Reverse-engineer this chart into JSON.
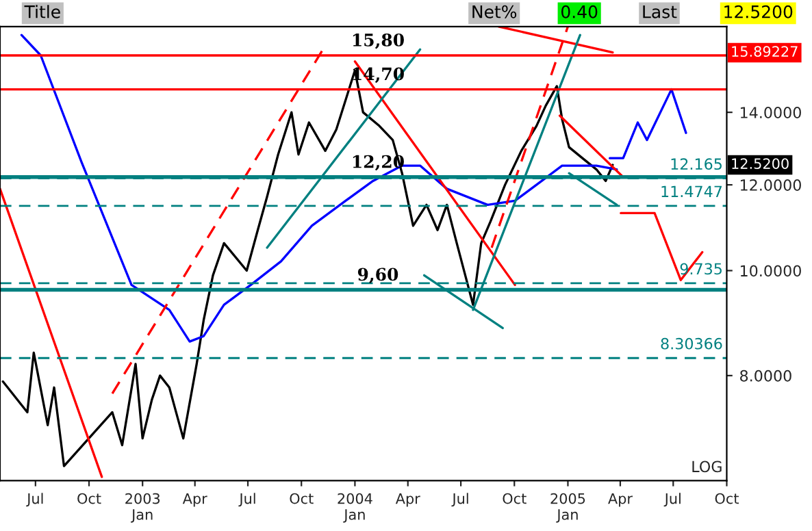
{
  "chart_data": {
    "type": "line",
    "log": true,
    "grid": false,
    "legend": false,
    "xlim": [
      "2002-05-01",
      "2005-10-01"
    ],
    "xticks": [
      {
        "value": "2002-07-01",
        "label": "Jul"
      },
      {
        "value": "2002-10-01",
        "label": "Oct"
      },
      {
        "value": "2003-01-01",
        "label": "2003\nJan"
      },
      {
        "value": "2003-04-01",
        "label": "Apr"
      },
      {
        "value": "2003-07-01",
        "label": "Jul"
      },
      {
        "value": "2003-10-01",
        "label": "Oct"
      },
      {
        "value": "2004-01-01",
        "label": "2004\nJan"
      },
      {
        "value": "2004-04-01",
        "label": "Apr"
      },
      {
        "value": "2004-07-01",
        "label": "Jul"
      },
      {
        "value": "2004-10-01",
        "label": "Oct"
      },
      {
        "value": "2005-01-01",
        "label": "2005\nJan"
      },
      {
        "value": "2005-04-01",
        "label": "Apr"
      },
      {
        "value": "2005-07-01",
        "label": "Jul"
      },
      {
        "value": "2005-10-01",
        "label": "Oct"
      }
    ],
    "ylim": [
      6.4,
      16.8
    ],
    "yticks": [
      {
        "value": 8,
        "label": "8.0000"
      },
      {
        "value": 10,
        "label": "10.0000"
      },
      {
        "value": 12,
        "label": "12.0000"
      },
      {
        "value": 14,
        "label": "14.0000"
      }
    ],
    "series": [
      {
        "color": "#000000",
        "x": [
          "2002-05-06",
          "2002-06-17",
          "2002-06-28",
          "2002-07-22",
          "2002-08-02",
          "2002-08-19",
          "2002-10-01",
          "2002-11-10",
          "2002-11-27",
          "2002-12-20",
          "2003-01-01",
          "2003-01-17",
          "2003-01-31",
          "2003-02-16",
          "2003-03-12",
          "2003-04-04",
          "2003-04-16",
          "2003-05-02",
          "2003-05-21",
          "2003-06-29",
          "2003-07-18",
          "2003-08-03",
          "2003-08-22",
          "2003-09-14",
          "2003-09-26",
          "2003-10-14",
          "2003-11-11",
          "2003-11-30",
          "2004-01-01",
          "2004-01-15",
          "2004-02-12",
          "2004-03-06",
          "2004-03-22",
          "2004-04-10",
          "2004-05-03",
          "2004-05-22",
          "2004-06-07",
          "2004-06-24",
          "2004-07-22",
          "2004-08-05",
          "2004-08-21",
          "2004-09-15",
          "2004-10-13",
          "2004-11-08",
          "2004-11-24",
          "2004-12-13",
          "2004-12-22",
          "2005-01-03",
          "2005-01-26",
          "2005-02-19",
          "2005-03-07",
          "2005-03-19"
        ],
        "values": [
          7.9,
          7.4,
          8.4,
          7.2,
          7.8,
          6.6,
          null,
          7.4,
          6.9,
          8.2,
          7.0,
          7.6,
          8.0,
          7.8,
          7.0,
          8.2,
          9.0,
          9.9,
          10.6,
          10.0,
          10.9,
          11.7,
          12.8,
          14.0,
          12.8,
          13.7,
          12.9,
          13.5,
          15.3,
          14.0,
          13.6,
          13.2,
          12.3,
          11.0,
          11.5,
          10.9,
          11.5,
          10.6,
          9.3,
          10.6,
          11.1,
          12.0,
          12.9,
          13.6,
          14.2,
          14.8,
          13.8,
          13.0,
          12.7,
          12.4,
          12.1,
          12.52
        ]
      },
      {
        "color": "#0000ff",
        "x": [
          "2002-06-07",
          "2002-07-10",
          "2002-09-18",
          "2002-12-13",
          "2003-02-16",
          "2003-03-23",
          "2003-04-16",
          "2003-05-21",
          "2003-07-06",
          "2003-08-27",
          "2003-10-19",
          "2003-12-16",
          "2004-02-01",
          "2004-03-22",
          "2004-04-22",
          "2004-06-07",
          "2004-08-16",
          "2004-10-02",
          "2004-11-17",
          "2004-12-22",
          "2005-02-19",
          "2005-03-26"
        ],
        "values": [
          16.5,
          15.8,
          12.6,
          9.7,
          9.2,
          8.6,
          8.7,
          9.3,
          9.7,
          10.2,
          11.0,
          11.6,
          12.1,
          12.5,
          12.5,
          11.9,
          11.5,
          11.6,
          12.1,
          12.5,
          12.5,
          12.4
        ]
      },
      {
        "color": "#ff0000",
        "x": [
          "2002-05-01",
          "2002-10-23"
        ],
        "values": [
          11.9,
          6.45
        ]
      },
      {
        "color": "#ff0000",
        "x": [
          "2004-01-01",
          "2004-10-02"
        ],
        "values": [
          15.6,
          9.7
        ]
      },
      {
        "color": "#ff0000",
        "x": [
          "2004-12-18",
          "2005-04-06"
        ],
        "values": [
          13.9,
          12.2
        ]
      },
      {
        "color": "#ff0000",
        "x": [
          "2004-09-04",
          "2005-03-19"
        ],
        "values": [
          16.8,
          15.9
        ]
      },
      {
        "color": "#ff0000",
        "line_style": "dashed",
        "x": [
          "2002-11-10",
          "2003-11-07"
        ],
        "values": [
          7.7,
          16.0
        ]
      },
      {
        "color": "#ff0000",
        "line_style": "dashed",
        "x": [
          "2004-08-23",
          "2005-01-01"
        ],
        "values": [
          10.5,
          16.8
        ]
      },
      {
        "color": "#008080",
        "x": [
          "2003-08-03",
          "2004-04-22"
        ],
        "values": [
          10.5,
          16.0
        ]
      },
      {
        "color": "#008080",
        "x": [
          "2004-07-22",
          "2005-01-22"
        ],
        "values": [
          9.2,
          16.5
        ]
      },
      {
        "color": "#008080",
        "x": [
          "2004-04-29",
          "2004-09-11"
        ],
        "values": [
          9.9,
          8.85
        ]
      },
      {
        "color": "#008080",
        "x": [
          "2005-01-03",
          "2005-03-26"
        ],
        "values": [
          12.3,
          11.5
        ]
      },
      {
        "color": "#0000ff",
        "x": [
          "2005-03-14",
          "2005-04-06",
          "2005-05-01",
          "2005-05-17",
          "2005-06-28",
          "2005-07-23"
        ],
        "values": [
          12.7,
          12.7,
          13.7,
          13.2,
          14.7,
          13.4
        ]
      },
      {
        "color": "#ff0000",
        "x": [
          "2005-04-02",
          "2005-05-30",
          "2005-07-14",
          "2005-08-20"
        ],
        "values": [
          11.3,
          11.3,
          9.8,
          10.4
        ]
      }
    ],
    "ref_lines": [
      {
        "axis": "y",
        "value": 15.8,
        "label": "15,80",
        "color": "#ff0000"
      },
      {
        "axis": "y",
        "value": 14.7,
        "label": "14,70",
        "color": "#ff0000"
      },
      {
        "axis": "y",
        "value": 12.2,
        "label": "12,20",
        "color": "#008080"
      },
      {
        "axis": "y",
        "value": 9.6,
        "label": "9,60",
        "color": "#008080"
      },
      {
        "axis": "y",
        "value": 12.165,
        "label": "12.165",
        "color": "#008080",
        "line_style": "dashed"
      },
      {
        "axis": "y",
        "value": 11.4747,
        "label": "11.4747",
        "color": "#008080",
        "line_style": "dashed"
      },
      {
        "axis": "y",
        "value": 9.735,
        "label": "9.735",
        "color": "#008080",
        "line_style": "dashed"
      },
      {
        "axis": "y",
        "value": 8.30366,
        "label": "8.30366",
        "color": "#008080",
        "line_style": "dashed"
      }
    ],
    "annotations": [
      "Title",
      "Net%",
      "0.40",
      "Last",
      "12.5200",
      "LOG",
      "15.89227",
      "12.5200"
    ]
  }
}
